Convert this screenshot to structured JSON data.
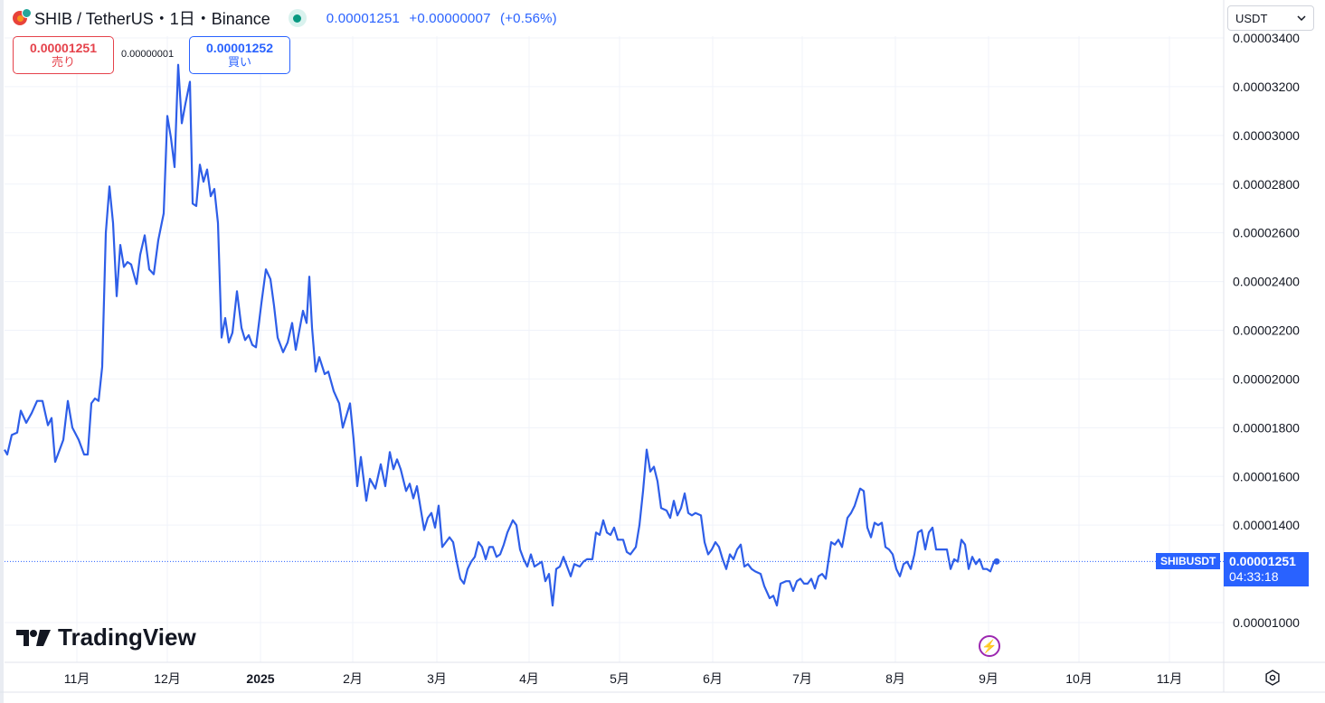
{
  "header": {
    "title": "SHIB / TetherUS・1日・Binance",
    "last_price": "0.00001251",
    "change": "+0.00000007",
    "change_pct": "(+0.56%)"
  },
  "trade": {
    "sell_price": "0.00001251",
    "sell_label": "売り",
    "spread": "0.00000001",
    "buy_price": "0.00001252",
    "buy_label": "買い"
  },
  "currency_select": {
    "value": "USDT"
  },
  "price_tag": {
    "symbol": "SHIBUSDT",
    "price": "0.00001251",
    "countdown": "04:33:18"
  },
  "watermark": {
    "text": "TradingView"
  },
  "icons": {
    "coin": "shib-coin-icon",
    "status": "market-open-dot-icon",
    "chevron": "chevron-down-icon",
    "flash": "flash-icon",
    "settings": "gear-icon"
  },
  "colors": {
    "line": "#2e5ee8",
    "accent": "#2962ff",
    "sell": "#e5424b",
    "grid": "#f0f3fa",
    "axis_text": "#131722"
  },
  "chart_data": {
    "type": "line",
    "title": "SHIB / TetherUS・1日・Binance",
    "series": [
      {
        "name": "SHIBUSDT",
        "points": [
          [
            0,
            1.71e-05
          ],
          [
            3,
            1.69e-05
          ],
          [
            8,
            1.77e-05
          ],
          [
            14,
            1.78e-05
          ],
          [
            18,
            1.87e-05
          ],
          [
            24,
            1.82e-05
          ],
          [
            30,
            1.86e-05
          ],
          [
            36,
            1.91e-05
          ],
          [
            42,
            1.91e-05
          ],
          [
            48,
            1.81e-05
          ],
          [
            52,
            1.84e-05
          ],
          [
            56,
            1.66e-05
          ],
          [
            61,
            1.71e-05
          ],
          [
            65,
            1.75e-05
          ],
          [
            70,
            1.91e-05
          ],
          [
            75,
            1.8e-05
          ],
          [
            82,
            1.75e-05
          ],
          [
            88,
            1.69e-05
          ],
          [
            92,
            1.69e-05
          ],
          [
            96,
            1.9e-05
          ],
          [
            100,
            1.92e-05
          ],
          [
            104,
            1.91e-05
          ],
          [
            108,
            2.05e-05
          ],
          [
            112,
            2.6e-05
          ],
          [
            116,
            2.79e-05
          ],
          [
            120,
            2.64e-05
          ],
          [
            124,
            2.34e-05
          ],
          [
            128,
            2.55e-05
          ],
          [
            132,
            2.46e-05
          ],
          [
            136,
            2.48e-05
          ],
          [
            140,
            2.47e-05
          ],
          [
            146,
            2.39e-05
          ],
          [
            150,
            2.51e-05
          ],
          [
            155,
            2.59e-05
          ],
          [
            160,
            2.45e-05
          ],
          [
            165,
            2.43e-05
          ],
          [
            170,
            2.57e-05
          ],
          [
            176,
            2.68e-05
          ],
          [
            180,
            3.08e-05
          ],
          [
            184,
            2.99e-05
          ],
          [
            188,
            2.87e-05
          ],
          [
            192,
            3.29e-05
          ],
          [
            196,
            3.05e-05
          ],
          [
            200,
            3.13e-05
          ],
          [
            205,
            3.22e-05
          ],
          [
            208,
            2.72e-05
          ],
          [
            212,
            2.71e-05
          ],
          [
            216,
            2.88e-05
          ],
          [
            220,
            2.81e-05
          ],
          [
            224,
            2.86e-05
          ],
          [
            228,
            2.75e-05
          ],
          [
            232,
            2.78e-05
          ],
          [
            236,
            2.64e-05
          ],
          [
            240,
            2.17e-05
          ],
          [
            244,
            2.25e-05
          ],
          [
            248,
            2.15e-05
          ],
          [
            252,
            2.19e-05
          ],
          [
            257,
            2.36e-05
          ],
          [
            262,
            2.21e-05
          ],
          [
            266,
            2.16e-05
          ],
          [
            270,
            2.18e-05
          ],
          [
            274,
            2.14e-05
          ],
          [
            278,
            2.13e-05
          ],
          [
            284,
            2.31e-05
          ],
          [
            289,
            2.45e-05
          ],
          [
            294,
            2.41e-05
          ],
          [
            298,
            2.3e-05
          ],
          [
            302,
            2.17e-05
          ],
          [
            308,
            2.11e-05
          ],
          [
            313,
            2.15e-05
          ],
          [
            318,
            2.23e-05
          ],
          [
            322,
            2.12e-05
          ],
          [
            326,
            2.2e-05
          ],
          [
            330,
            2.28e-05
          ],
          [
            334,
            2.23e-05
          ],
          [
            337,
            2.42e-05
          ],
          [
            340,
            2.21e-05
          ],
          [
            344,
            2.03e-05
          ],
          [
            348,
            2.09e-05
          ],
          [
            354,
            2.02e-05
          ],
          [
            358,
            2.03e-05
          ],
          [
            364,
            1.95e-05
          ],
          [
            370,
            1.9e-05
          ],
          [
            374,
            1.8e-05
          ],
          [
            378,
            1.85e-05
          ],
          [
            382,
            1.9e-05
          ],
          [
            386,
            1.75e-05
          ],
          [
            390,
            1.56e-05
          ],
          [
            394,
            1.68e-05
          ],
          [
            400,
            1.5e-05
          ],
          [
            404,
            1.59e-05
          ],
          [
            410,
            1.55e-05
          ],
          [
            416,
            1.65e-05
          ],
          [
            421,
            1.56e-05
          ],
          [
            426,
            1.7e-05
          ],
          [
            430,
            1.63e-05
          ],
          [
            434,
            1.67e-05
          ],
          [
            438,
            1.63e-05
          ],
          [
            444,
            1.54e-05
          ],
          [
            448,
            1.57e-05
          ],
          [
            452,
            1.51e-05
          ],
          [
            456,
            1.56e-05
          ],
          [
            460,
            1.47e-05
          ],
          [
            464,
            1.38e-05
          ],
          [
            468,
            1.43e-05
          ],
          [
            472,
            1.45e-05
          ],
          [
            476,
            1.39e-05
          ],
          [
            480,
            1.48e-05
          ],
          [
            484,
            1.31e-05
          ],
          [
            488,
            1.33e-05
          ],
          [
            492,
            1.35e-05
          ],
          [
            496,
            1.33e-05
          ],
          [
            500,
            1.25e-05
          ],
          [
            504,
            1.18e-05
          ],
          [
            508,
            1.16e-05
          ],
          [
            512,
            1.22e-05
          ],
          [
            516,
            1.25e-05
          ],
          [
            520,
            1.27e-05
          ],
          [
            524,
            1.33e-05
          ],
          [
            528,
            1.31e-05
          ],
          [
            532,
            1.26e-05
          ],
          [
            536,
            1.31e-05
          ],
          [
            540,
            1.31e-05
          ],
          [
            544,
            1.27e-05
          ],
          [
            548,
            1.28e-05
          ],
          [
            552,
            1.32e-05
          ],
          [
            556,
            1.37e-05
          ],
          [
            562,
            1.42e-05
          ],
          [
            566,
            1.4e-05
          ],
          [
            570,
            1.3e-05
          ],
          [
            574,
            1.26e-05
          ],
          [
            578,
            1.23e-05
          ],
          [
            582,
            1.28e-05
          ],
          [
            586,
            1.23e-05
          ],
          [
            590,
            1.24e-05
          ],
          [
            594,
            1.25e-05
          ],
          [
            598,
            1.17e-05
          ],
          [
            602,
            1.2e-05
          ],
          [
            606,
            1.07e-05
          ],
          [
            610,
            1.22e-05
          ],
          [
            614,
            1.23e-05
          ],
          [
            618,
            1.27e-05
          ],
          [
            622,
            1.23e-05
          ],
          [
            626,
            1.19e-05
          ],
          [
            630,
            1.24e-05
          ],
          [
            636,
            1.23e-05
          ],
          [
            640,
            1.25e-05
          ],
          [
            644,
            1.26e-05
          ],
          [
            650,
            1.26e-05
          ],
          [
            654,
            1.37e-05
          ],
          [
            658,
            1.36e-05
          ],
          [
            662,
            1.42e-05
          ],
          [
            666,
            1.37e-05
          ],
          [
            670,
            1.36e-05
          ],
          [
            674,
            1.39e-05
          ],
          [
            678,
            1.34e-05
          ],
          [
            684,
            1.34e-05
          ],
          [
            688,
            1.29e-05
          ],
          [
            692,
            1.28e-05
          ],
          [
            698,
            1.31e-05
          ],
          [
            702,
            1.4e-05
          ],
          [
            706,
            1.54e-05
          ],
          [
            710,
            1.71e-05
          ],
          [
            714,
            1.62e-05
          ],
          [
            718,
            1.64e-05
          ],
          [
            722,
            1.58e-05
          ],
          [
            726,
            1.47e-05
          ],
          [
            732,
            1.46e-05
          ],
          [
            736,
            1.43e-05
          ],
          [
            740,
            1.5e-05
          ],
          [
            744,
            1.44e-05
          ],
          [
            748,
            1.47e-05
          ],
          [
            752,
            1.53e-05
          ],
          [
            756,
            1.45e-05
          ],
          [
            760,
            1.44e-05
          ],
          [
            764,
            1.45e-05
          ],
          [
            770,
            1.44e-05
          ],
          [
            774,
            1.33e-05
          ],
          [
            778,
            1.28e-05
          ],
          [
            782,
            1.3e-05
          ],
          [
            786,
            1.33e-05
          ],
          [
            790,
            1.31e-05
          ],
          [
            794,
            1.26e-05
          ],
          [
            798,
            1.22e-05
          ],
          [
            802,
            1.28e-05
          ],
          [
            806,
            1.26e-05
          ],
          [
            810,
            1.3e-05
          ],
          [
            814,
            1.32e-05
          ],
          [
            818,
            1.23e-05
          ],
          [
            822,
            1.24e-05
          ],
          [
            826,
            1.22e-05
          ],
          [
            830,
            1.21e-05
          ],
          [
            836,
            1.2e-05
          ],
          [
            840,
            1.15e-05
          ],
          [
            846,
            1.1e-05
          ],
          [
            850,
            1.11e-05
          ],
          [
            854,
            1.07e-05
          ],
          [
            858,
            1.16e-05
          ],
          [
            864,
            1.17e-05
          ],
          [
            868,
            1.17e-05
          ],
          [
            872,
            1.13e-05
          ],
          [
            876,
            1.17e-05
          ],
          [
            880,
            1.18e-05
          ],
          [
            884,
            1.16e-05
          ],
          [
            888,
            1.16e-05
          ],
          [
            892,
            1.18e-05
          ],
          [
            896,
            1.14e-05
          ],
          [
            900,
            1.19e-05
          ],
          [
            904,
            1.2e-05
          ],
          [
            908,
            1.18e-05
          ],
          [
            914,
            1.33e-05
          ],
          [
            918,
            1.32e-05
          ],
          [
            922,
            1.34e-05
          ],
          [
            926,
            1.31e-05
          ],
          [
            932,
            1.43e-05
          ],
          [
            936,
            1.45e-05
          ],
          [
            940,
            1.48e-05
          ],
          [
            946,
            1.55e-05
          ],
          [
            950,
            1.54e-05
          ],
          [
            954,
            1.39e-05
          ],
          [
            958,
            1.35e-05
          ],
          [
            962,
            1.41e-05
          ],
          [
            966,
            1.4e-05
          ],
          [
            970,
            1.41e-05
          ],
          [
            974,
            1.31e-05
          ],
          [
            978,
            1.3e-05
          ],
          [
            982,
            1.28e-05
          ],
          [
            986,
            1.22e-05
          ],
          [
            990,
            1.19e-05
          ],
          [
            994,
            1.24e-05
          ],
          [
            998,
            1.25e-05
          ],
          [
            1002,
            1.22e-05
          ],
          [
            1006,
            1.28e-05
          ],
          [
            1010,
            1.37e-05
          ],
          [
            1014,
            1.38e-05
          ],
          [
            1018,
            1.3e-05
          ],
          [
            1022,
            1.37e-05
          ],
          [
            1026,
            1.39e-05
          ],
          [
            1030,
            1.3e-05
          ],
          [
            1034,
            1.3e-05
          ],
          [
            1038,
            1.3e-05
          ],
          [
            1042,
            1.3e-05
          ],
          [
            1046,
            1.22e-05
          ],
          [
            1050,
            1.26e-05
          ],
          [
            1054,
            1.25e-05
          ],
          [
            1058,
            1.34e-05
          ],
          [
            1062,
            1.32e-05
          ],
          [
            1066,
            1.22e-05
          ],
          [
            1070,
            1.27e-05
          ],
          [
            1074,
            1.24e-05
          ],
          [
            1078,
            1.26e-05
          ],
          [
            1082,
            1.22e-05
          ],
          [
            1086,
            1.22e-05
          ],
          [
            1090,
            1.21e-05
          ],
          [
            1094,
            1.25e-05
          ],
          [
            1097,
            1.251e-05
          ]
        ]
      }
    ],
    "x_unit": "days-index (0 = left edge of plot)",
    "xlim": [
      0,
      1350
    ],
    "x_ticks": [
      {
        "x": 80,
        "label": "11月"
      },
      {
        "x": 180,
        "label": "12月"
      },
      {
        "x": 283,
        "label": "2025"
      },
      {
        "x": 385,
        "label": "2月"
      },
      {
        "x": 478,
        "label": "3月"
      },
      {
        "x": 580,
        "label": "4月"
      },
      {
        "x": 680,
        "label": "5月"
      },
      {
        "x": 783,
        "label": "6月"
      },
      {
        "x": 882,
        "label": "7月"
      },
      {
        "x": 985,
        "label": "8月"
      },
      {
        "x": 1088,
        "label": "9月"
      },
      {
        "x": 1188,
        "label": "10月"
      },
      {
        "x": 1288,
        "label": "11月"
      }
    ],
    "y_ticks": [
      {
        "y": 3.4e-05,
        "label": "0.00003400"
      },
      {
        "y": 3.2e-05,
        "label": "0.00003200"
      },
      {
        "y": 3e-05,
        "label": "0.00003000"
      },
      {
        "y": 2.8e-05,
        "label": "0.00002800"
      },
      {
        "y": 2.6e-05,
        "label": "0.00002600"
      },
      {
        "y": 2.4e-05,
        "label": "0.00002400"
      },
      {
        "y": 2.2e-05,
        "label": "0.00002200"
      },
      {
        "y": 2e-05,
        "label": "0.00002000"
      },
      {
        "y": 1.8e-05,
        "label": "0.00001800"
      },
      {
        "y": 1.6e-05,
        "label": "0.00001600"
      },
      {
        "y": 1.4e-05,
        "label": "0.00001400"
      },
      {
        "y": 1e-05,
        "label": "0.00001000"
      }
    ],
    "ylim": [
      9.4e-06,
      3.41e-05
    ],
    "last_value": 1.251e-05,
    "grid": true
  }
}
